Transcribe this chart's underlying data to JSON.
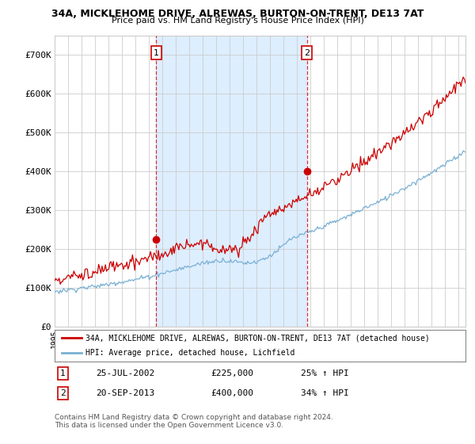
{
  "title": "34A, MICKLEHOME DRIVE, ALREWAS, BURTON-ON-TRENT, DE13 7AT",
  "subtitle": "Price paid vs. HM Land Registry's House Price Index (HPI)",
  "ylim": [
    0,
    750000
  ],
  "yticks": [
    0,
    100000,
    200000,
    300000,
    400000,
    500000,
    600000,
    700000
  ],
  "ytick_labels": [
    "£0",
    "£100K",
    "£200K",
    "£300K",
    "£400K",
    "£500K",
    "£600K",
    "£700K"
  ],
  "sale1_year": 2002.55,
  "sale1_price": 225000,
  "sale2_year": 2013.72,
  "sale2_price": 400000,
  "legend_line1": "34A, MICKLEHOME DRIVE, ALREWAS, BURTON-ON-TRENT, DE13 7AT (detached house)",
  "legend_line2": "HPI: Average price, detached house, Lichfield",
  "ann1_date": "25-JUL-2002",
  "ann1_price": "£225,000",
  "ann1_hpi": "25% ↑ HPI",
  "ann2_date": "20-SEP-2013",
  "ann2_price": "£400,000",
  "ann2_hpi": "34% ↑ HPI",
  "footnote": "Contains HM Land Registry data © Crown copyright and database right 2024.\nThis data is licensed under the Open Government Licence v3.0.",
  "red_color": "#cc0000",
  "blue_color": "#7ab0d4",
  "shade_color": "#ddeeff",
  "vline_color": "#cc0000",
  "bg_color": "#ffffff",
  "grid_color": "#cccccc",
  "start_year": 1995,
  "end_year": 2025
}
